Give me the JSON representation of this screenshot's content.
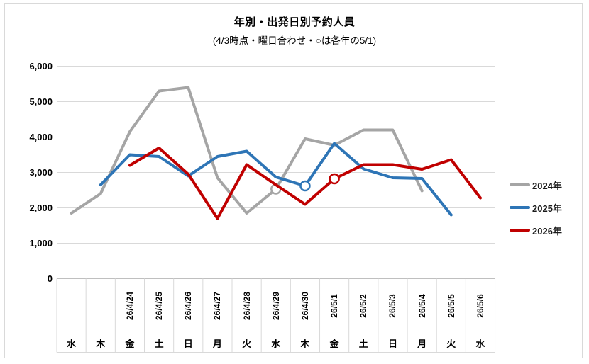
{
  "chart_data": {
    "type": "line",
    "title": "年別・出発日別予約人員",
    "subtitle": "(4/3時点・曜日合わせ・○は各年の5/1)",
    "ylabel": "",
    "xlabel": "",
    "ylim": [
      0,
      6000
    ],
    "ytick_step": 1000,
    "grid": true,
    "legend_position": "right",
    "marker_note": "○は各年の5/1 (circle marker = May 1 of each year)",
    "categories": [
      {
        "date": "",
        "dow": "水"
      },
      {
        "date": "",
        "dow": "木"
      },
      {
        "date": "26/4/24",
        "dow": "金"
      },
      {
        "date": "26/4/25",
        "dow": "土"
      },
      {
        "date": "26/4/26",
        "dow": "日"
      },
      {
        "date": "26/4/27",
        "dow": "月"
      },
      {
        "date": "26/4/28",
        "dow": "火"
      },
      {
        "date": "26/4/29",
        "dow": "水"
      },
      {
        "date": "26/4/30",
        "dow": "木"
      },
      {
        "date": "26/5/1",
        "dow": "金"
      },
      {
        "date": "26/5/2",
        "dow": "土"
      },
      {
        "date": "26/5/3",
        "dow": "日"
      },
      {
        "date": "26/5/4",
        "dow": "月"
      },
      {
        "date": "26/5/5",
        "dow": "火"
      },
      {
        "date": "26/5/6",
        "dow": "水"
      }
    ],
    "series": [
      {
        "name": "2024年",
        "color": "#A5A5A5",
        "start_index": 0,
        "marker_value_index": 7,
        "values": [
          1850,
          2400,
          4150,
          5300,
          5400,
          2850,
          1850,
          2530,
          3950,
          3770,
          4200,
          4200,
          2480
        ]
      },
      {
        "name": "2025年",
        "color": "#2E75B6",
        "start_index": 1,
        "marker_value_index": 7,
        "values": [
          2650,
          3500,
          3450,
          2900,
          3450,
          3600,
          2870,
          2620,
          3820,
          3100,
          2850,
          2830,
          1800
        ]
      },
      {
        "name": "2026年",
        "color": "#C00000",
        "start_index": 2,
        "marker_value_index": 7,
        "values": [
          3200,
          3690,
          2950,
          1700,
          3220,
          2650,
          2100,
          2820,
          3220,
          3220,
          3090,
          3360,
          2280
        ]
      }
    ],
    "colors": {
      "gridline": "#D9D9D9",
      "axis_line": "#BFBFBF",
      "text": "#000000"
    }
  }
}
